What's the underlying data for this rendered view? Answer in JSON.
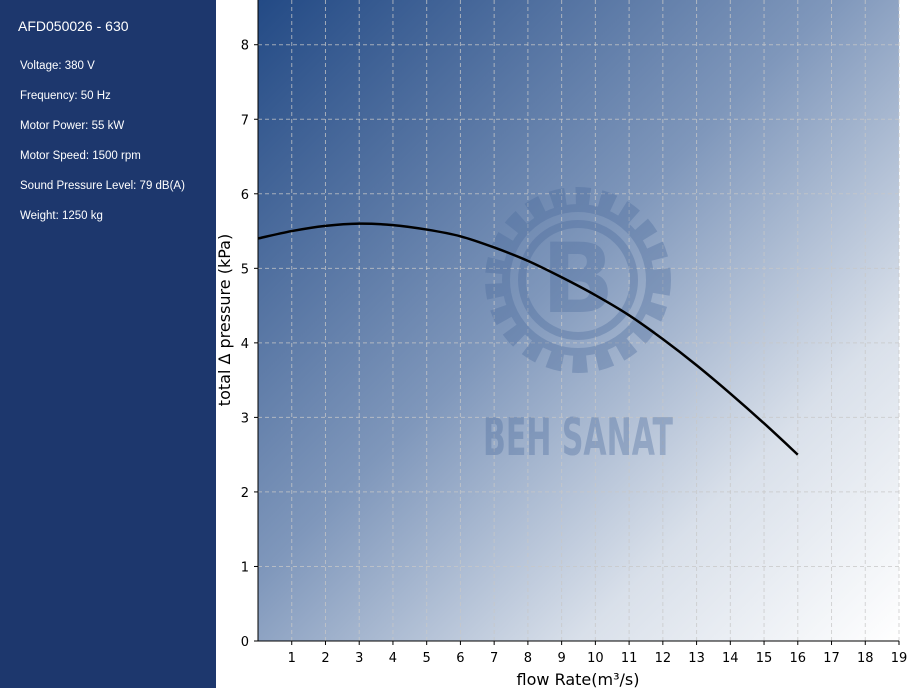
{
  "sidebar": {
    "title": "AFD050026 - 630",
    "specs": [
      "Voltage: 380 V",
      "Frequency: 50 Hz",
      "Motor Power: 55 kW",
      "Motor Speed: 1500 rpm",
      "Sound Pressure Level: 79 dB(A)",
      "Weight: 1250 kg"
    ]
  },
  "watermark": {
    "text": "BEH SANAT",
    "letter": "B"
  },
  "colors": {
    "sidebar": "#1d376d",
    "gradient_start": "#234a85",
    "gradient_end": "#ffffff",
    "curve": "#000000"
  },
  "chart_data": {
    "type": "line",
    "xlabel": "flow Rate(m³/s)",
    "ylabel": "total Δ pressure (kPa)",
    "xlim": [
      0,
      19
    ],
    "ylim": [
      0,
      8.6
    ],
    "xticks": [
      1,
      2,
      3,
      4,
      5,
      6,
      7,
      8,
      9,
      10,
      11,
      12,
      13,
      14,
      15,
      16,
      17,
      18,
      19
    ],
    "yticks": [
      0,
      1,
      2,
      3,
      4,
      5,
      6,
      7,
      8
    ],
    "grid": true,
    "x": [
      0,
      1,
      2,
      3,
      4,
      5,
      6,
      7,
      8,
      9,
      10,
      11,
      12,
      13,
      14,
      15,
      16
    ],
    "y": [
      5.4,
      5.5,
      5.57,
      5.6,
      5.58,
      5.52,
      5.43,
      5.28,
      5.1,
      4.88,
      4.64,
      4.37,
      4.05,
      3.7,
      3.32,
      2.92,
      2.5
    ]
  }
}
